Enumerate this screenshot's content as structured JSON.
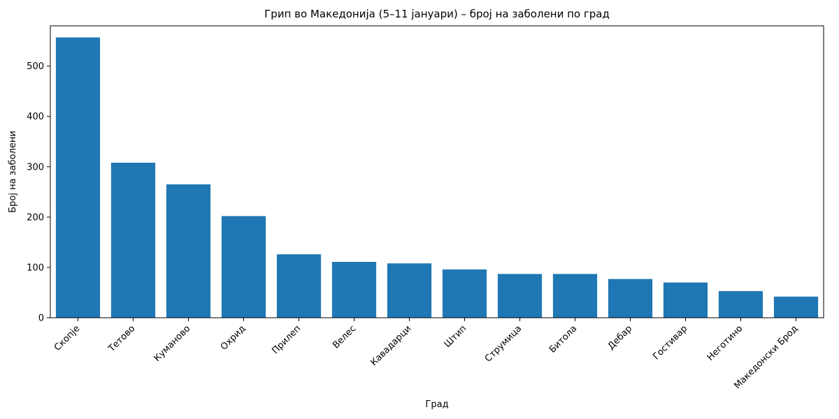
{
  "chart_data": {
    "type": "bar",
    "title": "Грип во Македонија (5–11 јануари) – број на заболени по град",
    "xlabel": "Град",
    "ylabel": "Број на заболени",
    "categories": [
      "Скопје",
      "Тетово",
      "Куманово",
      "Охрид",
      "Прилеп",
      "Велес",
      "Кавадарци",
      "Штип",
      "Струмица",
      "Битола",
      "Дебар",
      "Гостивар",
      "Неготино",
      "Македонски Брод"
    ],
    "values": [
      557,
      308,
      265,
      202,
      126,
      111,
      108,
      96,
      87,
      87,
      77,
      70,
      53,
      42
    ],
    "ylim": [
      0,
      580
    ],
    "yticks": [
      0,
      100,
      200,
      300,
      400,
      500
    ],
    "bar_color": "#1f77b4",
    "axis_color": "#000000",
    "grid": false,
    "legend_position": "none"
  }
}
